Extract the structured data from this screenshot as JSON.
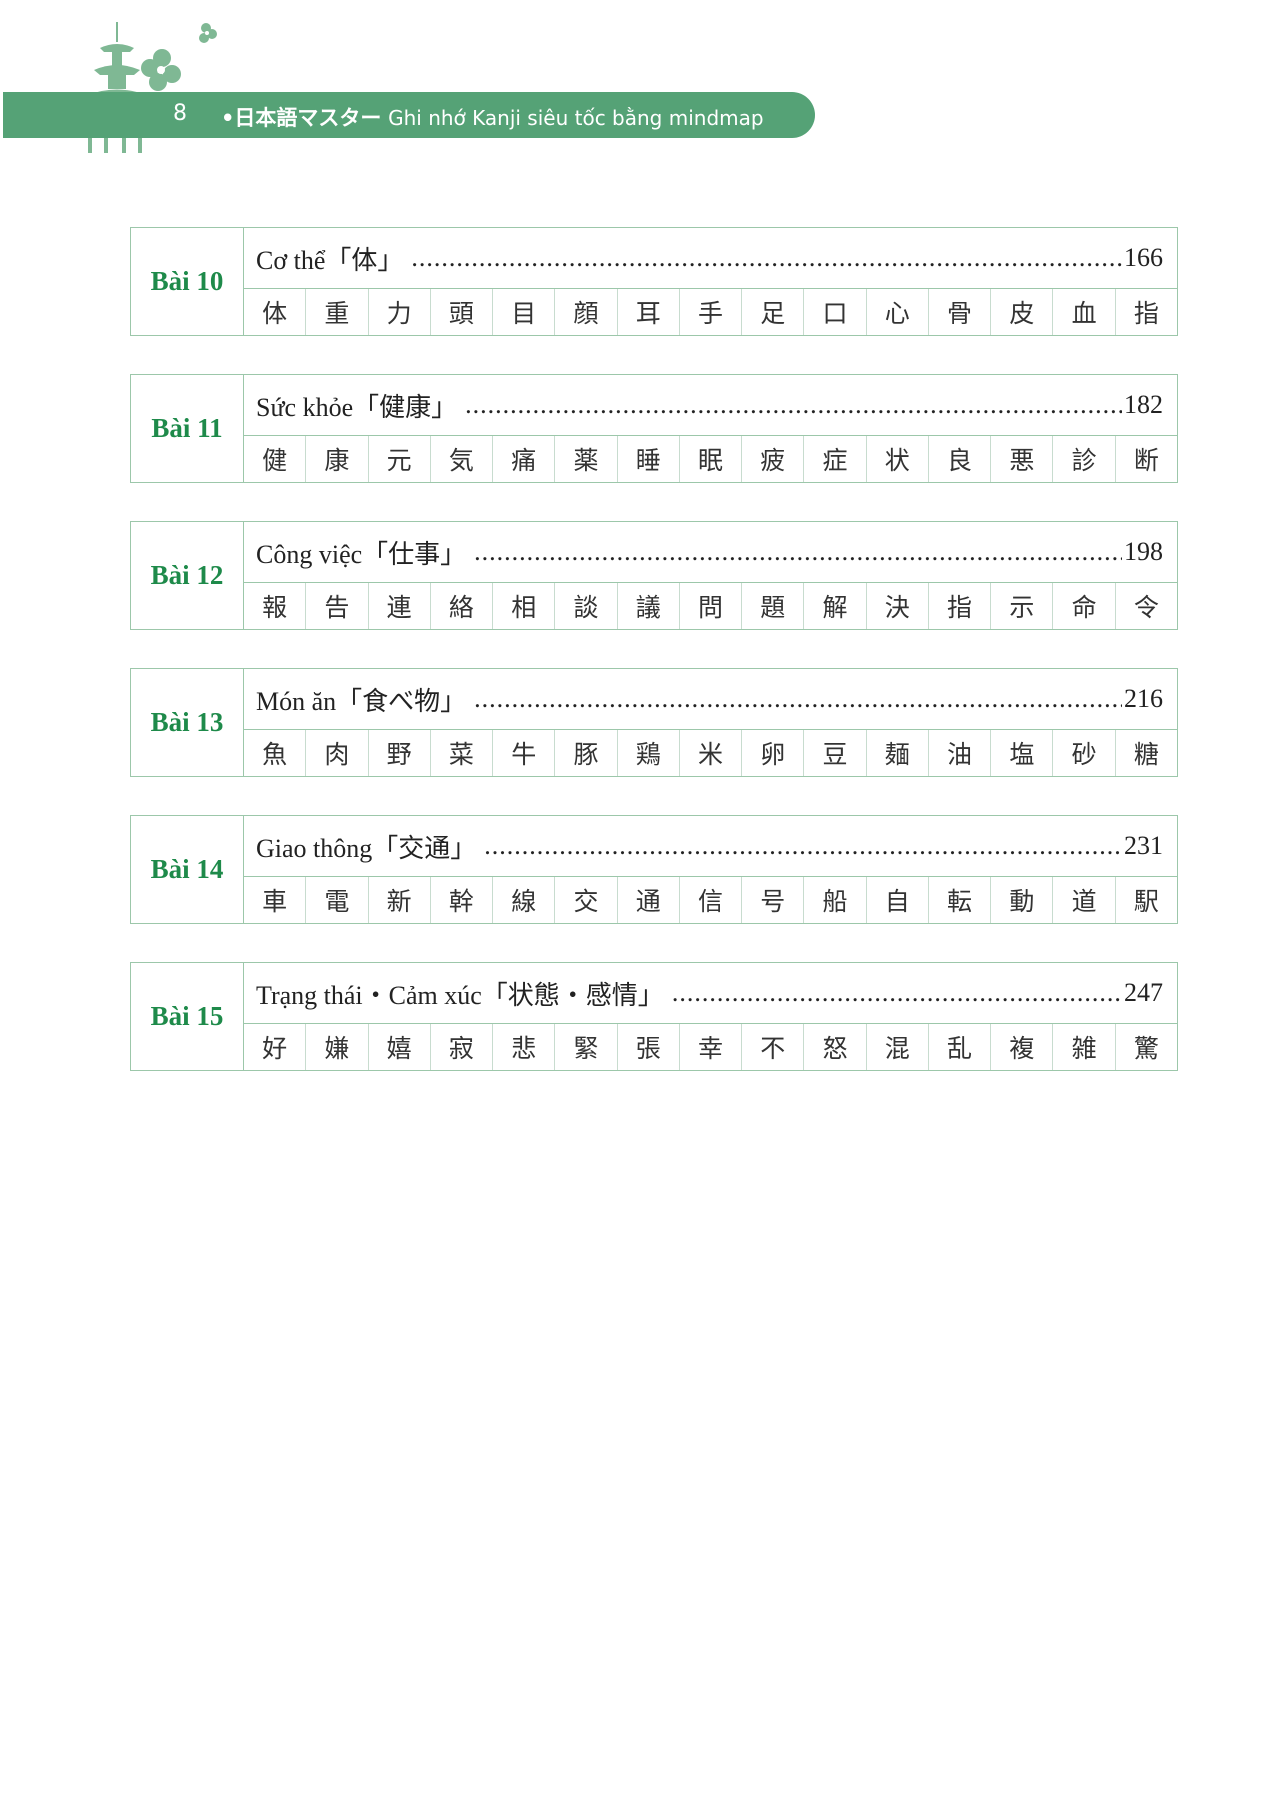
{
  "header": {
    "page_number": "8",
    "title_jp": "•日本語マスター",
    "title_vi": "Ghi nhớ Kanji siêu tốc bằng mindmap",
    "accent": "#55a276"
  },
  "lessons": [
    {
      "label": "Bài 10",
      "title": "Cơ thể「体」",
      "page": "166",
      "kanji": [
        "体",
        "重",
        "力",
        "頭",
        "目",
        "顔",
        "耳",
        "手",
        "足",
        "口",
        "心",
        "骨",
        "皮",
        "血",
        "指"
      ]
    },
    {
      "label": "Bài 11",
      "title": "Sức khỏe「健康」",
      "page": "182",
      "kanji": [
        "健",
        "康",
        "元",
        "気",
        "痛",
        "薬",
        "睡",
        "眠",
        "疲",
        "症",
        "状",
        "良",
        "悪",
        "診",
        "断"
      ]
    },
    {
      "label": "Bài 12",
      "title": "Công việc「仕事」",
      "page": "198",
      "kanji": [
        "報",
        "告",
        "連",
        "絡",
        "相",
        "談",
        "議",
        "問",
        "題",
        "解",
        "決",
        "指",
        "示",
        "命",
        "令"
      ]
    },
    {
      "label": "Bài 13",
      "title": "Món ăn「食べ物」",
      "page": "216",
      "kanji": [
        "魚",
        "肉",
        "野",
        "菜",
        "牛",
        "豚",
        "鶏",
        "米",
        "卵",
        "豆",
        "麺",
        "油",
        "塩",
        "砂",
        "糖"
      ]
    },
    {
      "label": "Bài 14",
      "title": "Giao thông「交通」",
      "page": "231",
      "kanji": [
        "車",
        "電",
        "新",
        "幹",
        "線",
        "交",
        "通",
        "信",
        "号",
        "船",
        "自",
        "転",
        "動",
        "道",
        "駅"
      ]
    },
    {
      "label": "Bài 15",
      "title": "Trạng thái・Cảm xúc「状態・感情」",
      "page": "247",
      "kanji": [
        "好",
        "嫌",
        "嬉",
        "寂",
        "悲",
        "緊",
        "張",
        "幸",
        "不",
        "怒",
        "混",
        "乱",
        "複",
        "雑",
        "驚"
      ]
    }
  ]
}
